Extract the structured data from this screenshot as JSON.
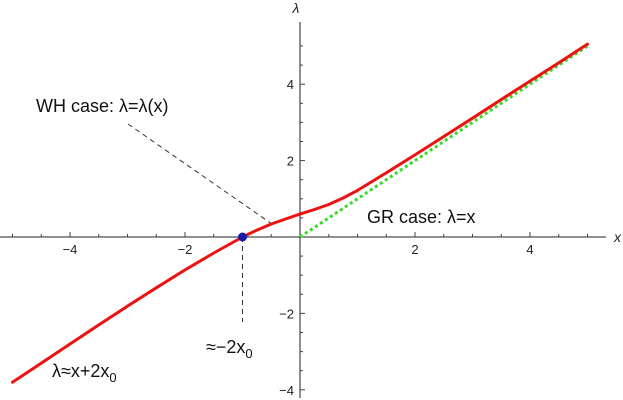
{
  "chart_data": {
    "type": "line",
    "title": "",
    "xlabel": "x",
    "ylabel": "λ",
    "xlim": [
      -5.15,
      5.15
    ],
    "ylim": [
      -4.3,
      5.6
    ],
    "grid": false,
    "x_ticks": [
      {
        "value": -4,
        "label": "−4"
      },
      {
        "value": -2,
        "label": "−2"
      },
      {
        "value": 2,
        "label": "2"
      },
      {
        "value": 4,
        "label": "4"
      }
    ],
    "y_ticks": [
      {
        "value": -4,
        "label": "−4"
      },
      {
        "value": -2,
        "label": "−2"
      },
      {
        "value": 2,
        "label": "2"
      },
      {
        "value": 4,
        "label": "4"
      }
    ],
    "series": [
      {
        "style": "solid",
        "color": "#ee1111",
        "x": [
          -5.0,
          -4.5,
          -4.0,
          -3.5,
          -3.0,
          -2.5,
          -2.0,
          -1.5,
          -1.0,
          -0.75,
          -0.5,
          -0.25,
          0.0,
          0.25,
          0.5,
          0.75,
          1.0,
          1.25,
          1.5,
          2.0,
          2.5,
          3.0,
          3.5,
          4.0,
          4.5,
          5.0
        ],
        "y": [
          -3.8,
          -3.3,
          -2.8,
          -2.3,
          -1.81,
          -1.33,
          -0.86,
          -0.42,
          0.0,
          0.18,
          0.34,
          0.47,
          0.6,
          0.72,
          0.85,
          1.02,
          1.22,
          1.45,
          1.68,
          2.15,
          2.63,
          3.11,
          3.6,
          4.08,
          4.56,
          5.05
        ]
      },
      {
        "style": "dotted",
        "color": "#33dd22",
        "x": [
          0.0,
          5.0
        ],
        "y": [
          0.0,
          5.0
        ]
      }
    ],
    "point": {
      "x": -1.0,
      "y": 0.0,
      "color": "#1a1aa8"
    },
    "annotations": {
      "wh_case": {
        "text": "WH case: λ=λ(x)",
        "points_to": {
          "x": -0.45,
          "y": 0.3
        }
      },
      "gr_case": {
        "text": "GR case: λ=x"
      },
      "neg2x0": {
        "text": "≈−2x",
        "sub": "0"
      },
      "asymptote": {
        "text": "λ≈x+2x",
        "sub": "0"
      }
    }
  }
}
